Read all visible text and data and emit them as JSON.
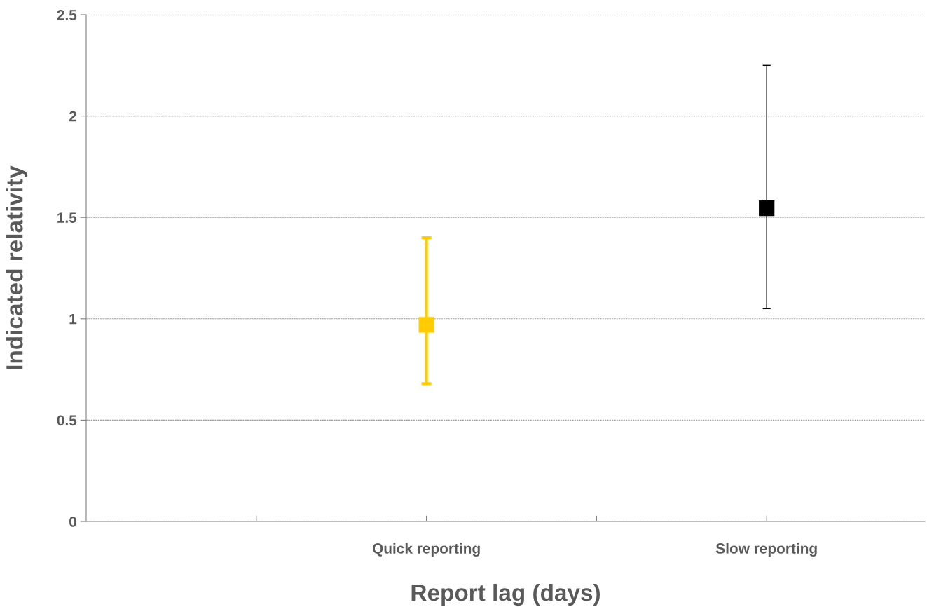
{
  "chart_data": {
    "type": "scatter",
    "xlabel": "Report lag (days)",
    "ylabel": "Indicated relativity",
    "categories": [
      null,
      "Quick reporting",
      null,
      "Slow reporting"
    ],
    "ylim": [
      0,
      2.5
    ],
    "yticks": [
      0,
      0.5,
      1,
      1.5,
      2,
      2.5
    ],
    "grid": "y",
    "marker": "square",
    "series": [
      {
        "color": "#ffcc00",
        "values": [
          null,
          0.97,
          null,
          null
        ],
        "errors": [
          null,
          [
            0.68,
            1.4
          ],
          null,
          null
        ]
      },
      {
        "color": "#000000",
        "values": [
          null,
          null,
          null,
          1.545
        ],
        "errors": [
          null,
          null,
          null,
          [
            1.05,
            2.25
          ]
        ]
      }
    ]
  }
}
